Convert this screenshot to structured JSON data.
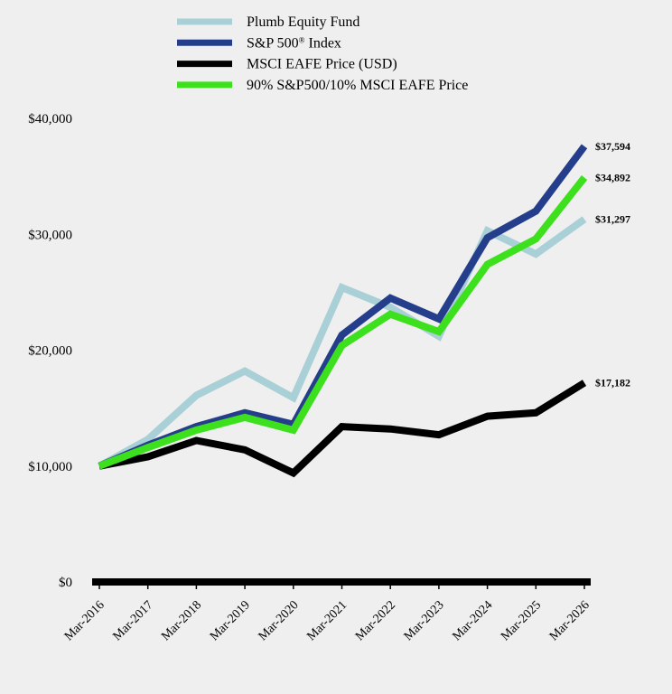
{
  "chart_data": {
    "type": "line",
    "title": "",
    "xlabel": "",
    "ylabel": "",
    "x": [
      "Mar-2016",
      "Mar-2017",
      "Mar-2018",
      "Mar-2019",
      "Mar-2020",
      "Mar-2021",
      "Mar-2022",
      "Mar-2023",
      "Mar-2024",
      "Mar-2025",
      "Mar-2026"
    ],
    "ylim": [
      0,
      40000
    ],
    "yticks": [
      0,
      10000,
      20000,
      30000,
      40000
    ],
    "ytick_labels": [
      "$0",
      "$10,000",
      "$20,000",
      "$30,000",
      "$40,000"
    ],
    "grid": false,
    "legend_position": "top-center",
    "series": [
      {
        "name": "Plumb Equity Fund",
        "color": "#a8d0d6",
        "values": [
          10000,
          12300,
          16100,
          18200,
          15900,
          25400,
          23700,
          21200,
          30300,
          28300,
          31297
        ],
        "end_label": "$31,297"
      },
      {
        "name": "S&P 500",
        "name_sup": "®",
        "name_suffix": " Index",
        "color": "#243e8c",
        "values": [
          10000,
          11800,
          13400,
          14600,
          13600,
          21300,
          24500,
          22700,
          29700,
          32000,
          37594
        ],
        "end_label": "$37,594"
      },
      {
        "name": "MSCI EAFE Price (USD)",
        "color": "#000000",
        "values": [
          10000,
          10800,
          12200,
          11400,
          9400,
          13400,
          13200,
          12700,
          14300,
          14600,
          17182
        ],
        "end_label": "$17,182"
      },
      {
        "name": "90% S&P500/10% MSCI EAFE Price",
        "color": "#3de01c",
        "values": [
          10000,
          11600,
          13100,
          14200,
          13100,
          20400,
          23100,
          21600,
          27400,
          29600,
          34892
        ],
        "end_label": "$34,892"
      }
    ]
  }
}
